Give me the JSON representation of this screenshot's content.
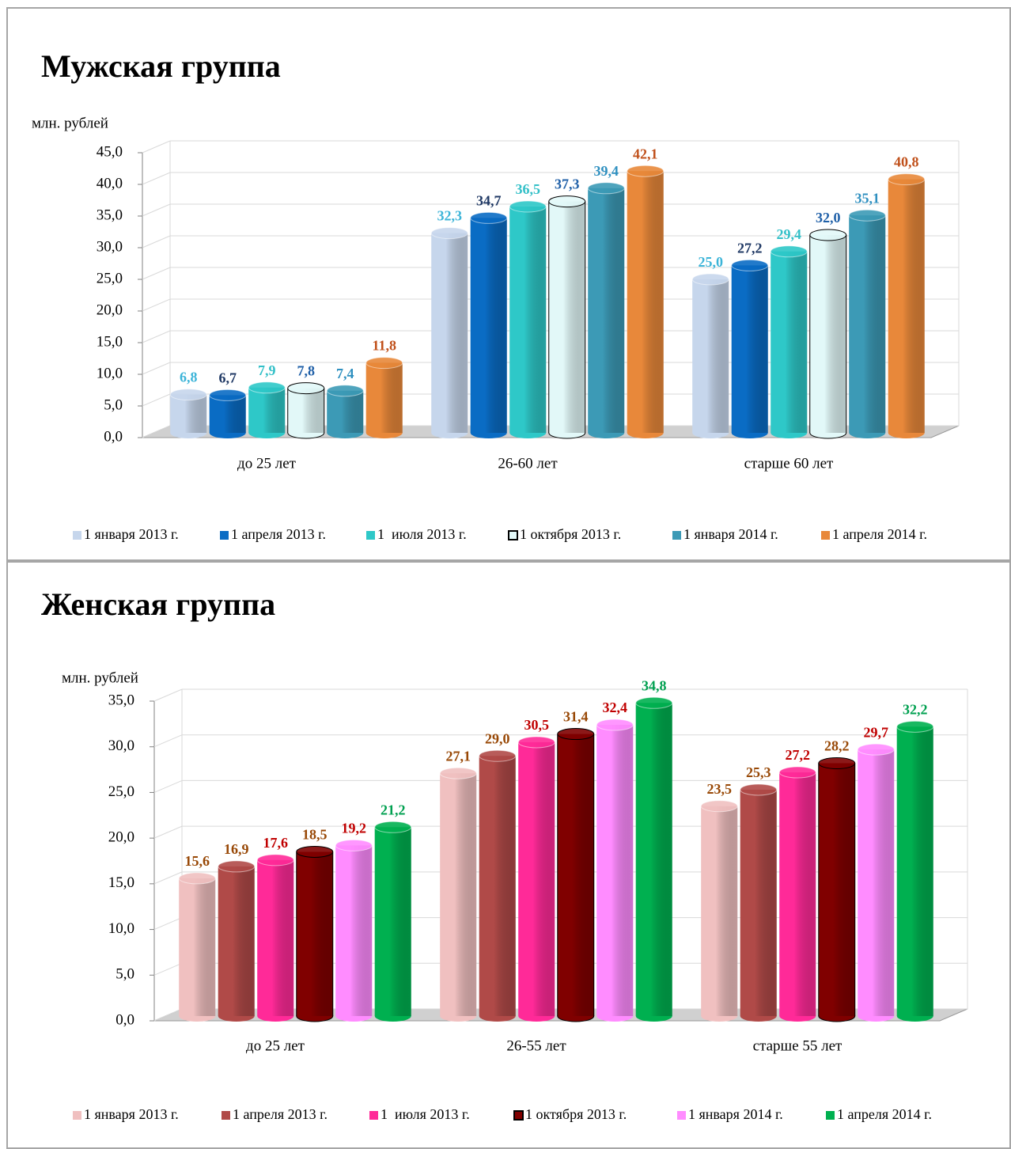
{
  "chart_data": [
    {
      "type": "bar3d",
      "title": "Мужская  группа",
      "y_label": "млн. рублей",
      "categories": [
        "до 25 лет",
        "26-60 лет",
        "старше 60 лет"
      ],
      "ylim": [
        0,
        45
      ],
      "yticks": [
        {
          "value": 0,
          "label": "0,0"
        },
        {
          "value": 5,
          "label": "5,0"
        },
        {
          "value": 10,
          "label": "10,0"
        },
        {
          "value": 15,
          "label": "15,0"
        },
        {
          "value": 20,
          "label": "20,0"
        },
        {
          "value": 25,
          "label": "25,0"
        },
        {
          "value": 30,
          "label": "30,0"
        },
        {
          "value": 35,
          "label": "35,0"
        },
        {
          "value": 40,
          "label": "40,0"
        },
        {
          "value": 45,
          "label": "45,0"
        }
      ],
      "grid": true,
      "series": [
        {
          "name": "1 января 2013 г.",
          "color": "#c6d6ec",
          "label_color": "#3cb4d8",
          "values": [
            6.8,
            32.3,
            25.0
          ],
          "value_labels": [
            "6,8",
            "32,3",
            "25,0"
          ]
        },
        {
          "name": "1 апреля 2013 г.",
          "color": "#0a6cc4",
          "label_color": "#1f3864",
          "values": [
            6.7,
            34.7,
            27.2
          ],
          "value_labels": [
            "6,7",
            "34,7",
            "27,2"
          ]
        },
        {
          "name": "1  июля 2013 г.",
          "color": "#2ec8c8",
          "label_color": "#33c0c8",
          "values": [
            7.9,
            36.5,
            29.4
          ],
          "value_labels": [
            "7,9",
            "36,5",
            "29,4"
          ]
        },
        {
          "name": "1 октября 2013 г.",
          "color": "#e2f8f8",
          "stroke": "#000000",
          "label_color": "#2060a8",
          "values": [
            7.8,
            37.3,
            32.0
          ],
          "value_labels": [
            "7,8",
            "37,3",
            "32,0"
          ]
        },
        {
          "name": "1 января 2014 г.",
          "color": "#3c9ab6",
          "label_color": "#2f90c0",
          "values": [
            7.4,
            39.4,
            35.1
          ],
          "value_labels": [
            "7,4",
            "39,4",
            "35,1"
          ]
        },
        {
          "name": "1 апреля 2014 г.",
          "color": "#e8883a",
          "label_color": "#c0501a",
          "values": [
            11.8,
            42.1,
            40.8
          ],
          "value_labels": [
            "11,8",
            "42,1",
            "40,8"
          ]
        }
      ]
    },
    {
      "type": "bar3d",
      "title": "Женская группа",
      "y_label": "млн. рублей",
      "categories": [
        "до 25 лет",
        "26-55 лет",
        "старше 55 лет"
      ],
      "ylim": [
        0,
        35
      ],
      "yticks": [
        {
          "value": 0,
          "label": "0,0"
        },
        {
          "value": 5,
          "label": "5,0"
        },
        {
          "value": 10,
          "label": "10,0"
        },
        {
          "value": 15,
          "label": "15,0"
        },
        {
          "value": 20,
          "label": "20,0"
        },
        {
          "value": 25,
          "label": "25,0"
        },
        {
          "value": 30,
          "label": "30,0"
        },
        {
          "value": 35,
          "label": "35,0"
        }
      ],
      "grid": true,
      "series": [
        {
          "name": "1 января 2013 г.",
          "color": "#f0c0c0",
          "label_color": "#984806",
          "values": [
            15.6,
            27.1,
            23.5
          ],
          "value_labels": [
            "15,6",
            "27,1",
            "23,5"
          ]
        },
        {
          "name": "1 апреля 2013 г.",
          "color": "#b04a48",
          "label_color": "#984806",
          "values": [
            16.9,
            29.0,
            25.3
          ],
          "value_labels": [
            "16,9",
            "29,0",
            "25,3"
          ]
        },
        {
          "name": "1  июля 2013 г.",
          "color": "#ff2a98",
          "label_color": "#c00000",
          "values": [
            17.6,
            30.5,
            27.2
          ],
          "value_labels": [
            "17,6",
            "30,5",
            "27,2"
          ]
        },
        {
          "name": "1 октября 2013 г.",
          "color": "#800000",
          "stroke": "#000000",
          "label_color": "#984806",
          "values": [
            18.5,
            31.4,
            28.2
          ],
          "value_labels": [
            "18,5",
            "31,4",
            "28,2"
          ]
        },
        {
          "name": "1 января 2014 г.",
          "color": "#ff8cff",
          "label_color": "#c00000",
          "values": [
            19.2,
            32.4,
            29.7
          ],
          "value_labels": [
            "19,2",
            "32,4",
            "29,7"
          ]
        },
        {
          "name": "1 апреля 2014 г.",
          "color": "#00b050",
          "label_color": "#00a050",
          "values": [
            21.2,
            34.8,
            32.2
          ],
          "value_labels": [
            "21,2",
            "34,8",
            "32,2"
          ]
        }
      ]
    }
  ]
}
